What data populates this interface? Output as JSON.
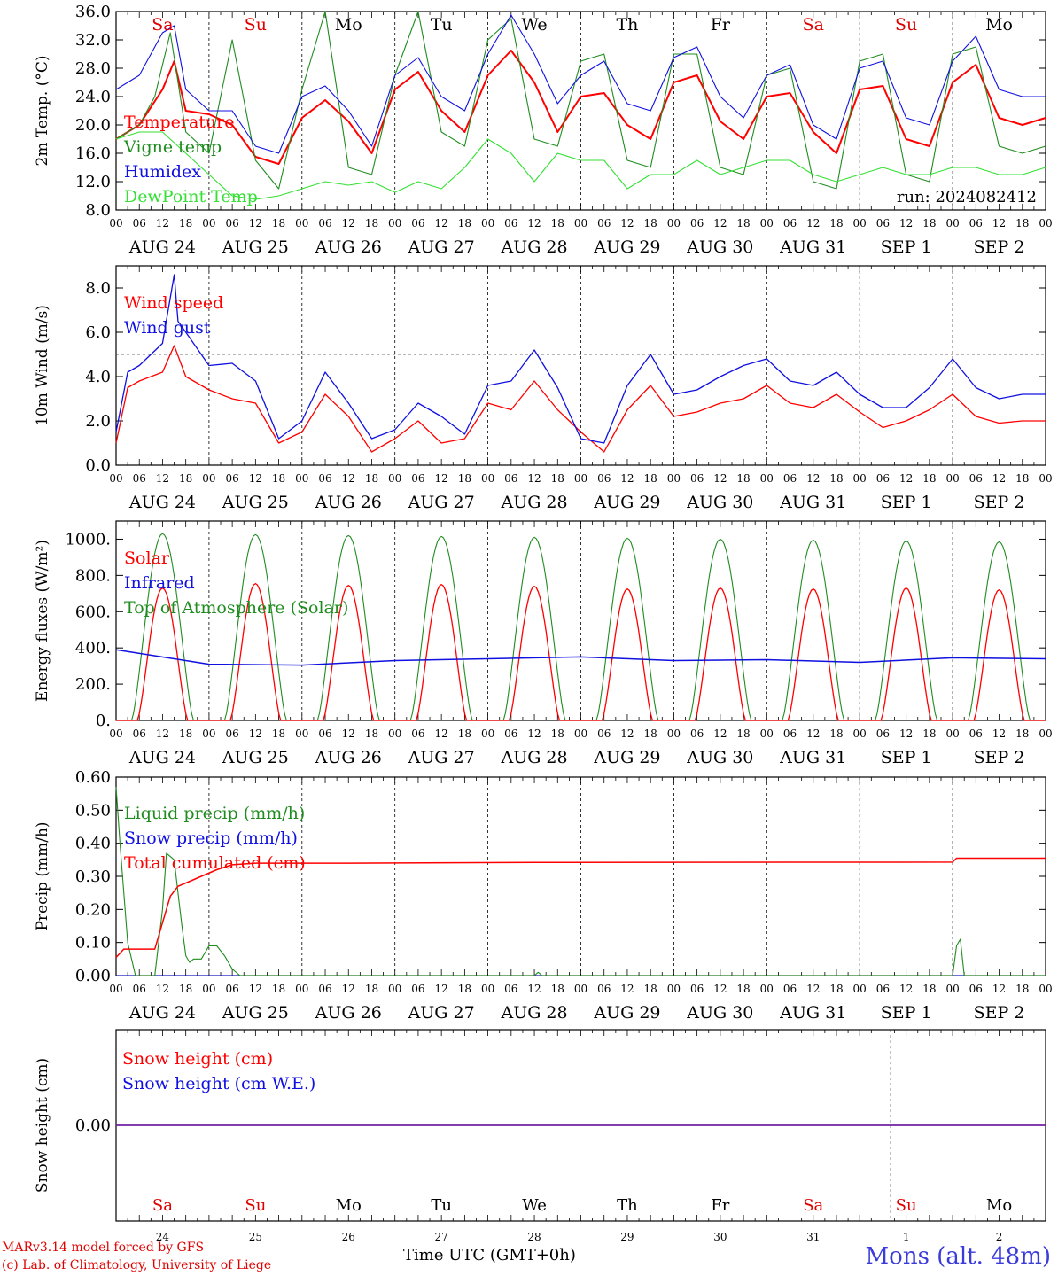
{
  "run_label": "run: 2024082412",
  "time_axis_label": "Time UTC (GMT+0h)",
  "credit_model": "MARv3.14 model forced by GFS",
  "credit_lab": "(c) Lab. of Climatology, University of Liege",
  "station": "Mons (alt. 48m)",
  "hour_ticks": [
    "00",
    "06",
    "12",
    "18"
  ],
  "last_hour_tick": "00",
  "date_labels": [
    "AUG 24",
    "AUG 25",
    "AUG 26",
    "AUG 27",
    "AUG 28",
    "AUG 29",
    "AUG 30",
    "AUG 31",
    "SEP  1",
    "SEP  2"
  ],
  "weekdays": [
    "Sa",
    "Su",
    "Mo",
    "Tu",
    "We",
    "Th",
    "Fr",
    "Sa",
    "Su",
    "Mo"
  ],
  "weekday_colors": [
    "#e00000",
    "#e00000",
    "#000000",
    "#000000",
    "#000000",
    "#000000",
    "#000000",
    "#e00000",
    "#e00000",
    "#000000"
  ],
  "day_numbers": [
    "24",
    "25",
    "26",
    "27",
    "28",
    "29",
    "30",
    "31",
    "1",
    "2"
  ],
  "colors": {
    "red": "#ff0000",
    "green": "#1f8c1f",
    "blue": "#1010e0",
    "lightgreen": "#33e033",
    "purple": "#7020a0"
  },
  "chart_data": [
    {
      "type": "line",
      "ylabel": "2m Temp. (°C)",
      "ylim": [
        8,
        36
      ],
      "yticks": [
        "36.0",
        "32.0",
        "28.0",
        "24.0",
        "20.0",
        "16.0",
        "12.0",
        "8.0"
      ],
      "x_unit": "hours since AUG 24 00 UTC",
      "series": [
        {
          "name": "Temperature",
          "color": "#ff0000",
          "x": [
            0,
            6,
            12,
            15,
            18,
            24,
            30,
            36,
            42,
            48,
            54,
            60,
            66,
            72,
            78,
            84,
            90,
            96,
            102,
            108,
            114,
            120,
            126,
            132,
            138,
            144,
            150,
            156,
            162,
            168,
            174,
            180,
            186,
            192,
            198,
            204,
            210,
            216,
            222,
            228,
            234,
            240
          ],
          "y": [
            18,
            20,
            25,
            29,
            22,
            21.5,
            20,
            15.5,
            14.5,
            21,
            23.5,
            20.5,
            16,
            25,
            27.5,
            22,
            19,
            27,
            30.5,
            26,
            19,
            24,
            24.5,
            20,
            18,
            26,
            27,
            20.5,
            18,
            24,
            24.5,
            19,
            16,
            25,
            25.5,
            18,
            17,
            26,
            28.5,
            21,
            20,
            21
          ]
        },
        {
          "name": "Vigne temp",
          "color": "#1f8c1f",
          "x": [
            0,
            6,
            10,
            14,
            18,
            24,
            30,
            36,
            42,
            48,
            54,
            60,
            66,
            72,
            78,
            84,
            90,
            96,
            102,
            108,
            114,
            120,
            126,
            132,
            138,
            144,
            150,
            156,
            162,
            168,
            174,
            180,
            186,
            192,
            198,
            204,
            210,
            216,
            222,
            228,
            234,
            240
          ],
          "y": [
            18,
            20,
            24,
            33,
            19,
            16,
            32,
            15,
            11,
            25,
            36,
            14,
            13,
            27,
            36,
            19,
            17,
            32,
            35,
            18,
            17,
            29,
            30,
            15,
            14,
            30,
            30,
            14,
            13,
            27,
            28,
            12,
            11,
            29,
            30,
            13,
            12,
            30,
            31,
            17,
            16,
            17
          ]
        },
        {
          "name": "Humidex",
          "color": "#1010e0",
          "x": [
            0,
            6,
            12,
            15,
            18,
            24,
            30,
            36,
            42,
            48,
            54,
            60,
            66,
            72,
            78,
            84,
            90,
            96,
            102,
            108,
            114,
            120,
            126,
            132,
            138,
            144,
            150,
            156,
            162,
            168,
            174,
            180,
            186,
            192,
            198,
            204,
            210,
            216,
            222,
            228,
            234,
            240
          ],
          "y": [
            25,
            27,
            33,
            34,
            25,
            22,
            22,
            17,
            16,
            24,
            25.5,
            22,
            17,
            27,
            29.5,
            24,
            22,
            30,
            35.5,
            30,
            23,
            27,
            29,
            23,
            22,
            29.5,
            31,
            24,
            21,
            27,
            28.5,
            20,
            18,
            28,
            29,
            21,
            20,
            29,
            32.5,
            25,
            24,
            24
          ]
        },
        {
          "name": "DewPoint Temp",
          "color": "#33e033",
          "x": [
            0,
            6,
            12,
            18,
            24,
            30,
            36,
            42,
            48,
            54,
            60,
            66,
            72,
            78,
            84,
            90,
            96,
            102,
            108,
            114,
            120,
            126,
            132,
            138,
            144,
            150,
            156,
            162,
            168,
            174,
            180,
            186,
            192,
            198,
            204,
            210,
            216,
            222,
            228,
            234,
            240
          ],
          "y": [
            18,
            19,
            19,
            16,
            13,
            10,
            9.5,
            10,
            11,
            12,
            11.5,
            12,
            10.5,
            12,
            11,
            14,
            18,
            16,
            12,
            16,
            15,
            15,
            11,
            13,
            13,
            15,
            13,
            14,
            15,
            15,
            13,
            12,
            13,
            14,
            13,
            13,
            14,
            14,
            13,
            13,
            14
          ]
        }
      ]
    },
    {
      "type": "line",
      "ylabel": "10m Wind (m/s)",
      "ylim": [
        0,
        9
      ],
      "yticks": [
        "8.0",
        "6.0",
        "4.0",
        "2.0",
        "0.0"
      ],
      "reference_line": 5,
      "x_unit": "hours since AUG 24 00 UTC",
      "series": [
        {
          "name": "Wind speed",
          "color": "#ff0000",
          "x": [
            0,
            3,
            6,
            12,
            15,
            18,
            24,
            30,
            36,
            42,
            48,
            54,
            60,
            66,
            72,
            78,
            84,
            90,
            96,
            102,
            108,
            114,
            120,
            126,
            132,
            138,
            144,
            150,
            156,
            162,
            168,
            174,
            180,
            186,
            192,
            198,
            204,
            210,
            216,
            222,
            228,
            234,
            240
          ],
          "y": [
            1,
            3.5,
            3.8,
            4.2,
            5.4,
            4.0,
            3.4,
            3.0,
            2.8,
            1.0,
            1.5,
            3.2,
            2.2,
            0.6,
            1.2,
            2.0,
            1.0,
            1.2,
            2.8,
            2.5,
            3.8,
            2.5,
            1.5,
            0.6,
            2.5,
            3.6,
            2.2,
            2.4,
            2.8,
            3.0,
            3.6,
            2.8,
            2.6,
            3.2,
            2.4,
            1.7,
            2.0,
            2.5,
            3.2,
            2.2,
            1.9,
            2.0,
            2.0
          ]
        },
        {
          "name": "Wind gust",
          "color": "#1010e0",
          "x": [
            0,
            3,
            6,
            12,
            15,
            16,
            18,
            24,
            30,
            36,
            42,
            48,
            54,
            60,
            66,
            72,
            78,
            84,
            90,
            96,
            102,
            108,
            114,
            120,
            126,
            132,
            138,
            144,
            150,
            156,
            162,
            168,
            174,
            180,
            186,
            192,
            198,
            204,
            210,
            216,
            222,
            228,
            234,
            240
          ],
          "y": [
            1.5,
            4.2,
            4.5,
            5.5,
            8.6,
            6.5,
            6.0,
            4.5,
            4.6,
            3.8,
            1.2,
            2.0,
            4.2,
            2.8,
            1.2,
            1.6,
            2.8,
            2.2,
            1.4,
            3.6,
            3.8,
            5.2,
            3.5,
            1.2,
            1.0,
            3.6,
            5.0,
            3.2,
            3.4,
            4.0,
            4.5,
            4.8,
            3.8,
            3.6,
            4.2,
            3.2,
            2.6,
            2.6,
            3.5,
            4.8,
            3.5,
            3.0,
            3.2,
            3.2
          ]
        }
      ]
    },
    {
      "type": "line",
      "ylabel": "Energy fluxes (W/m²)",
      "ylim": [
        0,
        1100
      ],
      "yticks": [
        "1000.",
        "800.",
        "600.",
        "400.",
        "200.",
        "0."
      ],
      "x_unit": "hours since AUG 24 00 UTC",
      "series": [
        {
          "name": "Solar",
          "color": "#ff0000",
          "daily_peak": [
            730,
            755,
            745,
            750,
            740,
            725,
            730,
            725,
            730,
            720
          ]
        },
        {
          "name": "Infrared",
          "color": "#1010e0",
          "x": [
            0,
            24,
            48,
            72,
            96,
            120,
            144,
            168,
            192,
            216,
            240
          ],
          "y": [
            390,
            310,
            305,
            330,
            340,
            350,
            330,
            335,
            320,
            345,
            340
          ]
        },
        {
          "name": "Top of Atmosphere (Solar)",
          "color": "#1f8c1f",
          "daily_peak": [
            1030,
            1025,
            1020,
            1015,
            1010,
            1005,
            1000,
            995,
            990,
            985
          ]
        }
      ]
    },
    {
      "type": "line",
      "ylabel": "Precip (mm/h)",
      "ylim": [
        0,
        0.6
      ],
      "yticks": [
        "0.60",
        "0.50",
        "0.40",
        "0.30",
        "0.20",
        "0.10",
        "0.00"
      ],
      "x_unit": "hours since AUG 24 00 UTC",
      "series": [
        {
          "name": "Liquid precip (mm/h)",
          "color": "#1f8c1f",
          "x": [
            0,
            1,
            3,
            5,
            7,
            10,
            12,
            13,
            14,
            15,
            16,
            17,
            18,
            19,
            20,
            22,
            24,
            26,
            28,
            30,
            32,
            34,
            108,
            109,
            110,
            216,
            217,
            218,
            219,
            240
          ],
          "y": [
            0.57,
            0.4,
            0.1,
            0,
            0,
            0,
            0.2,
            0.37,
            0.36,
            0.35,
            0.25,
            0.15,
            0.06,
            0.04,
            0.05,
            0.05,
            0.09,
            0.09,
            0.06,
            0.02,
            0,
            0,
            0,
            0.01,
            0,
            0,
            0.09,
            0.11,
            0,
            0
          ]
        },
        {
          "name": "Snow precip (mm/h)",
          "color": "#1010e0",
          "x": [
            0,
            240
          ],
          "y": [
            0,
            0
          ]
        },
        {
          "name": "Total cumulated (cm)",
          "color": "#ff0000",
          "x": [
            0,
            2,
            10,
            12,
            14,
            16,
            18,
            22,
            26,
            30,
            36,
            60,
            108,
            216,
            217,
            240
          ],
          "y": [
            0.055,
            0.08,
            0.08,
            0.16,
            0.24,
            0.27,
            0.28,
            0.3,
            0.32,
            0.335,
            0.34,
            0.34,
            0.342,
            0.343,
            0.355,
            0.355
          ]
        }
      ]
    },
    {
      "type": "line",
      "ylabel": "Snow height (cm)",
      "yticks": [
        "0.00"
      ],
      "series": [
        {
          "name": "Snow height (cm)",
          "color": "#ff0000",
          "x": [
            0,
            240
          ],
          "y": [
            0,
            0
          ]
        },
        {
          "name": "Snow height (cm W.E.)",
          "color": "#1010e0",
          "x": [
            0,
            240
          ],
          "y": [
            0,
            0
          ]
        }
      ]
    }
  ]
}
